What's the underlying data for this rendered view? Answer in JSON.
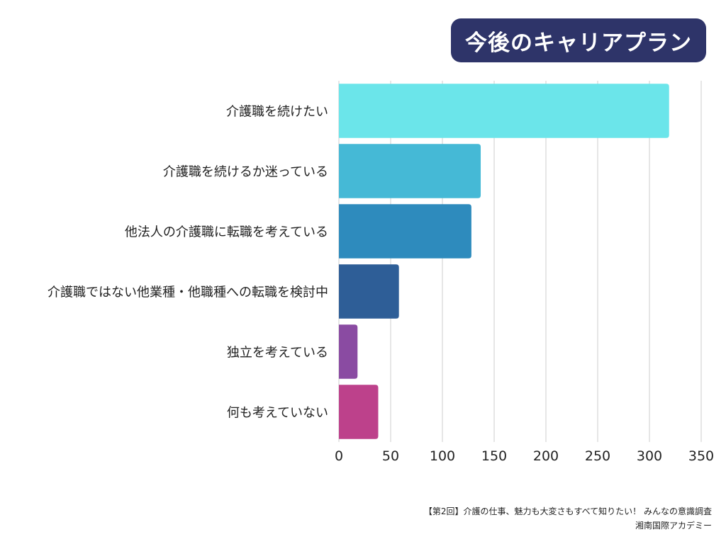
{
  "title": "今後のキャリアプラン",
  "footer": {
    "line1": "【第2回】介護の仕事、魅力も大変さもすべて知りたい！ みんなの意識調査",
    "line2": "湘南国際アカデミー"
  },
  "chart_data": {
    "type": "bar",
    "orientation": "horizontal",
    "categories": [
      "介護職を続けたい",
      "介護職を続けるか迷っている",
      "他法人の介護職に転職を考えている",
      "介護職ではない他業種・他職種への転職を検討中",
      "独立を考えている",
      "何も考えていない"
    ],
    "values": [
      319,
      137,
      128,
      58,
      18,
      38
    ],
    "colors": [
      "#6be5ea",
      "#45b9d6",
      "#2e8bbd",
      "#2e5e97",
      "#8a4ba2",
      "#bd418b"
    ],
    "xlim": [
      0,
      350
    ],
    "xticks": [
      0,
      50,
      100,
      150,
      200,
      250,
      300,
      350
    ],
    "grid": true,
    "xlabel": "",
    "ylabel": ""
  }
}
